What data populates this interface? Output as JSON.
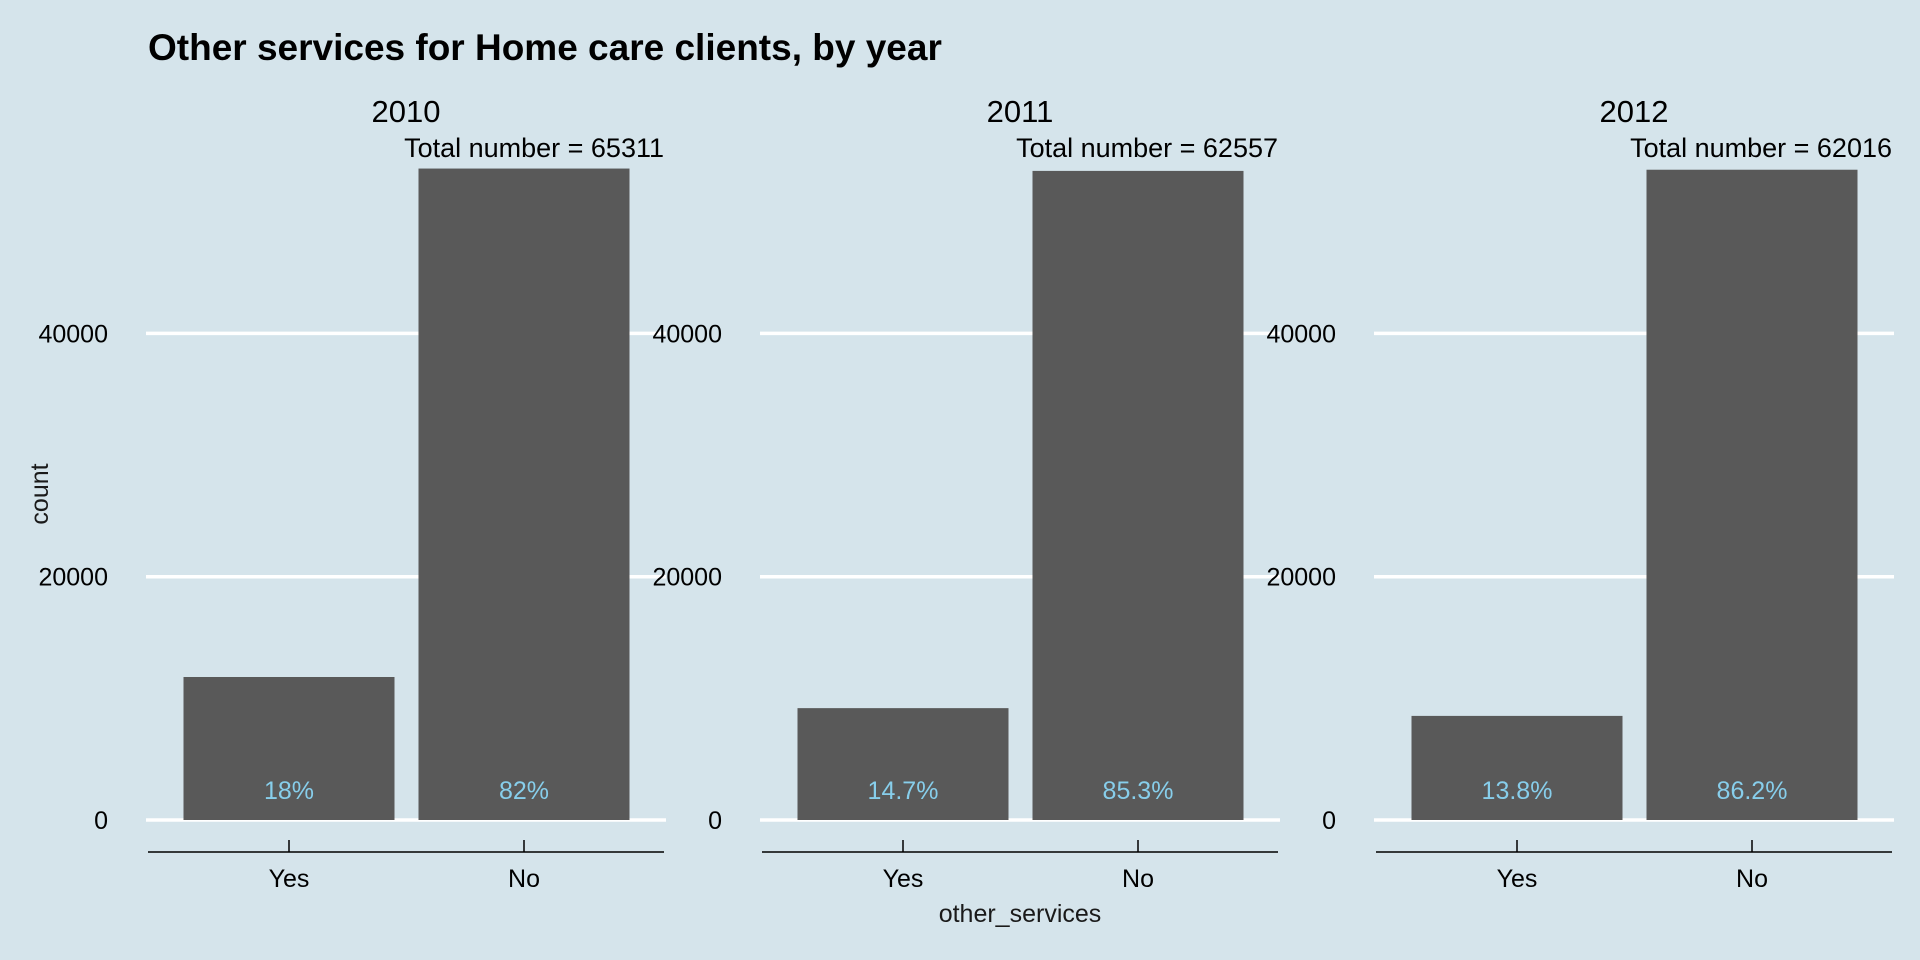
{
  "chart_data": {
    "type": "bar",
    "title": "Other services for Home care clients, by year",
    "xlabel": "other_services",
    "ylabel": "count",
    "ylim": [
      0,
      53600
    ],
    "yticks": [
      0,
      20000,
      40000
    ],
    "grid": "horizontal",
    "colors": {
      "background": "#d5e4eb",
      "bar": "#595959",
      "gridline": "#ffffff",
      "pct_label": "#87ceeb",
      "axis": "#000000"
    },
    "categories": [
      "Yes",
      "No"
    ],
    "panels": [
      {
        "facet": "2010",
        "total_label": "Total number = 65311",
        "values": [
          11756,
          53555
        ],
        "percent_labels": [
          "18%",
          "82%"
        ]
      },
      {
        "facet": "2011",
        "total_label": "Total number = 62557",
        "values": [
          9196,
          53361
        ],
        "percent_labels": [
          "14.7%",
          "85.3%"
        ]
      },
      {
        "facet": "2012",
        "total_label": "Total number = 62016",
        "values": [
          8558,
          53458
        ],
        "percent_labels": [
          "13.8%",
          "86.2%"
        ]
      }
    ]
  }
}
